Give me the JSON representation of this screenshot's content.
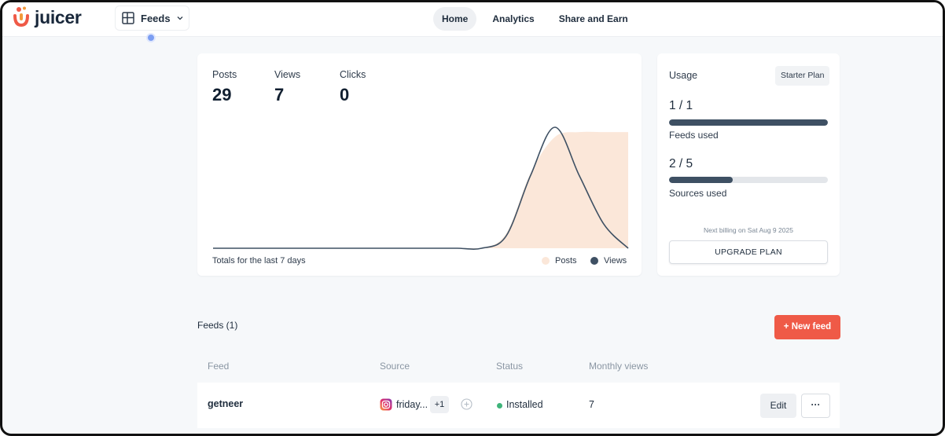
{
  "brand": {
    "name": "juicer",
    "accent": "#ef5a47"
  },
  "header": {
    "feed_selector": {
      "label": "Feeds",
      "icon": "layout-grid-icon"
    },
    "nav": [
      {
        "label": "Home",
        "active": true
      },
      {
        "label": "Analytics",
        "active": false
      },
      {
        "label": "Share and Earn",
        "active": false
      }
    ]
  },
  "stats": {
    "items": [
      {
        "label": "Posts",
        "value": "29"
      },
      {
        "label": "Views",
        "value": "7"
      },
      {
        "label": "Clicks",
        "value": "0"
      }
    ],
    "footer": "Totals for the last 7 days",
    "legend": [
      {
        "label": "Posts",
        "color": "#fbe7d9"
      },
      {
        "label": "Views",
        "color": "#3e5063"
      }
    ]
  },
  "chart_data": {
    "type": "area",
    "title": "",
    "xlabel": "",
    "ylabel": "",
    "series": [
      {
        "name": "Posts",
        "style": "area",
        "values": [
          0,
          0,
          0,
          0,
          0,
          0,
          0,
          0,
          0,
          0,
          0,
          0,
          0.12,
          0.62,
          0.92,
          0.96,
          0.96,
          0.96
        ]
      },
      {
        "name": "Views",
        "style": "line",
        "values": [
          0,
          0,
          0,
          0,
          0,
          0,
          0,
          0,
          0,
          0,
          0,
          0,
          0.1,
          0.6,
          1.0,
          0.6,
          0.2,
          0
        ]
      }
    ],
    "grid": false,
    "legend_position": "bottom-right"
  },
  "usage": {
    "title": "Usage",
    "plan": "Starter Plan",
    "feeds": {
      "count": "1 / 1",
      "label": "Feeds used",
      "fraction": 1.0
    },
    "sources": {
      "count": "2 / 5",
      "label": "Sources used",
      "fraction": 0.4
    },
    "billing": "Next billing on Sat Aug 9 2025",
    "upgrade_label": "UPGRADE PLAN"
  },
  "feeds": {
    "heading": "Feeds (1)",
    "new_feed_label": "+ New feed",
    "columns": [
      "Feed",
      "Source",
      "Status",
      "Monthly views"
    ],
    "rows": [
      {
        "name": "getneer",
        "source": "friday...",
        "source_icon": "instagram-icon",
        "extra_sources": "+1",
        "status": "Installed",
        "status_color": "#3fb47a",
        "monthly_views": "7",
        "edit_label": "Edit",
        "more_label": "···"
      }
    ]
  }
}
